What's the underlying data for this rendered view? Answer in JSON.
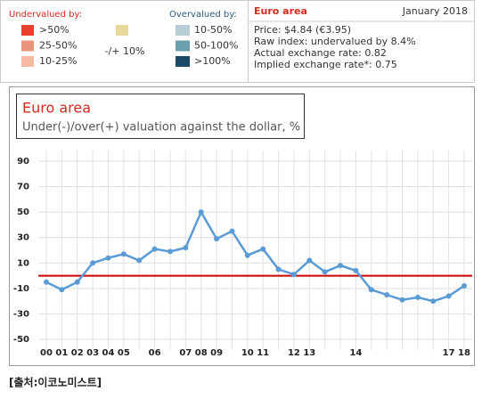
{
  "legend": {
    "under_title": "Undervalued by:",
    "over_title": "Overvalued by:",
    "under": [
      {
        "label": ">50%",
        "color": "#e8402f"
      },
      {
        "label": "25-50%",
        "color": "#e8957c"
      },
      {
        "label": "10-25%",
        "color": "#f7b9a4"
      }
    ],
    "neutral": {
      "label": "-/+ 10%",
      "color": "#e8d99a"
    },
    "over": [
      {
        "label": "10-50%",
        "color": "#b8cdd6"
      },
      {
        "label": "50-100%",
        "color": "#6a9fae"
      },
      {
        "label": ">100%",
        "color": "#1a4a6a"
      }
    ]
  },
  "info": {
    "title": "Euro area",
    "date": "January 2018",
    "lines": [
      "Price: $4.84 (€3.95)",
      "Raw index: undervalued by 8.4%",
      "Actual exchange rate: 0.82",
      "Implied exchange rate*: 0.75"
    ]
  },
  "chart_data": {
    "type": "line",
    "title": "Euro area",
    "subtitle": "Under(-)/over(+) valuation against the dollar, %",
    "categories": [
      "00",
      "01",
      "02",
      "03",
      "04",
      "05",
      null,
      "06",
      null,
      "07",
      "08",
      "09",
      null,
      "10",
      "11",
      null,
      "12",
      "13",
      null,
      null,
      "14",
      null,
      null,
      null,
      null,
      null,
      "17",
      "18"
    ],
    "series": [
      {
        "name": "Euro area",
        "color": "#5b9bd5",
        "values": [
          -5,
          -11,
          -5,
          10,
          14,
          17,
          12,
          21,
          19,
          22,
          50,
          29,
          35,
          16,
          21,
          5,
          1,
          12,
          3,
          8,
          4,
          -11,
          -15,
          -19,
          -17,
          -20,
          -16,
          -8
        ]
      }
    ],
    "ylim": [
      -50,
      90
    ],
    "yticks": [
      90,
      70,
      50,
      30,
      10,
      -10,
      -30,
      -50
    ],
    "grid": true,
    "reference_line": {
      "value": 0,
      "color": "#cc0000"
    }
  },
  "source": "[출처:이코노미스트]"
}
